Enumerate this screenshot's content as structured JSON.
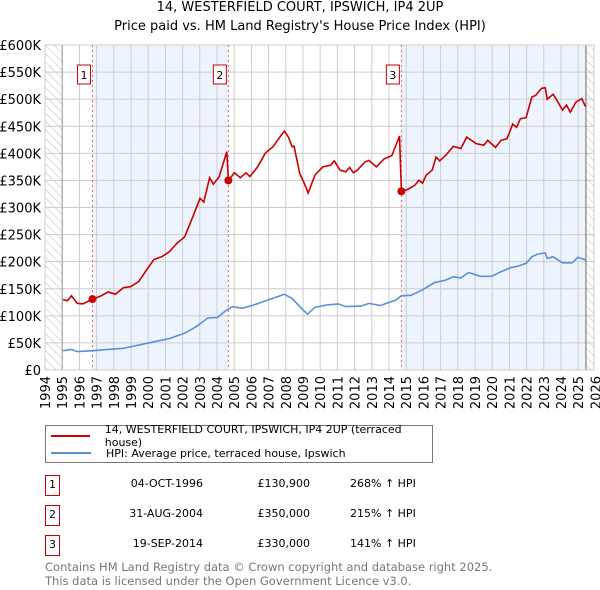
{
  "chart_data": {
    "type": "line",
    "title": "14, WESTERFIELD COURT, IPSWICH, IP4 2UP",
    "subtitle": "Price paid vs. HM Land Registry's House Price Index (HPI)",
    "xlim": [
      1994,
      2025.55
    ],
    "ylim": [
      0,
      600000
    ],
    "x_ticks": [
      "1994",
      "1995",
      "1996",
      "1997",
      "1998",
      "1999",
      "2000",
      "2001",
      "2002",
      "2003",
      "2004",
      "2005",
      "2006",
      "2007",
      "2008",
      "2009",
      "2010",
      "2011",
      "2012",
      "2013",
      "2014",
      "2015",
      "2016",
      "2017",
      "2018",
      "2019",
      "2020",
      "2021",
      "2022",
      "2023",
      "2024",
      "2025",
      "2026"
    ],
    "y_ticks": [
      {
        "value": 0,
        "label": "£0"
      },
      {
        "value": 50000,
        "label": "£50K"
      },
      {
        "value": 100000,
        "label": "£100K"
      },
      {
        "value": 150000,
        "label": "£150K"
      },
      {
        "value": 200000,
        "label": "£200K"
      },
      {
        "value": 250000,
        "label": "£250K"
      },
      {
        "value": 300000,
        "label": "£300K"
      },
      {
        "value": 350000,
        "label": "£350K"
      },
      {
        "value": 400000,
        "label": "£400K"
      },
      {
        "value": 450000,
        "label": "£450K"
      },
      {
        "value": 500000,
        "label": "£500K"
      },
      {
        "value": 550000,
        "label": "£550K"
      },
      {
        "value": 600000,
        "label": "£600K"
      }
    ],
    "grid": true,
    "data_end": 2025.45,
    "series": [
      {
        "name": "14, WESTERFIELD COURT, IPSWICH, IP4 2UP (terraced house)",
        "color": "#cc0000",
        "points": [
          [
            1995.04,
            130
          ],
          [
            1995.31,
            128
          ],
          [
            1995.54,
            137
          ],
          [
            1995.87,
            123
          ],
          [
            1996.2,
            122
          ],
          [
            1996.76,
            130.9
          ],
          [
            1997.21,
            136
          ],
          [
            1997.66,
            144
          ],
          [
            1998.1,
            140
          ],
          [
            1998.55,
            152
          ],
          [
            1998.99,
            154
          ],
          [
            1999.44,
            163
          ],
          [
            1999.89,
            184
          ],
          [
            2000.33,
            204
          ],
          [
            2000.78,
            209
          ],
          [
            2001.22,
            218
          ],
          [
            2001.67,
            234
          ],
          [
            2002.12,
            246
          ],
          [
            2002.56,
            280
          ],
          [
            2003.01,
            317
          ],
          [
            2003.23,
            310
          ],
          [
            2003.57,
            355
          ],
          [
            2003.79,
            343
          ],
          [
            2004.13,
            357
          ],
          [
            2004.57,
            403
          ],
          [
            2004.66,
            350
          ],
          [
            2005.02,
            364
          ],
          [
            2005.35,
            355
          ],
          [
            2005.69,
            364
          ],
          [
            2005.91,
            357
          ],
          [
            2006.36,
            375
          ],
          [
            2006.8,
            400
          ],
          [
            2007.25,
            412
          ],
          [
            2007.7,
            432
          ],
          [
            2007.92,
            441
          ],
          [
            2008.15,
            430
          ],
          [
            2008.37,
            412
          ],
          [
            2008.48,
            413
          ],
          [
            2008.81,
            363
          ],
          [
            2009.04,
            347
          ],
          [
            2009.3,
            327
          ],
          [
            2009.7,
            360
          ],
          [
            2010.15,
            375
          ],
          [
            2010.6,
            378
          ],
          [
            2010.82,
            386
          ],
          [
            2011.15,
            369
          ],
          [
            2011.49,
            366
          ],
          [
            2011.71,
            374
          ],
          [
            2011.93,
            364
          ],
          [
            2012.16,
            369
          ],
          [
            2012.6,
            384
          ],
          [
            2012.83,
            387
          ],
          [
            2013.27,
            375
          ],
          [
            2013.72,
            390
          ],
          [
            2014.17,
            396
          ],
          [
            2014.61,
            432
          ],
          [
            2014.72,
            330
          ],
          [
            2015.06,
            333
          ],
          [
            2015.5,
            341
          ],
          [
            2015.73,
            350
          ],
          [
            2015.95,
            345
          ],
          [
            2016.17,
            360
          ],
          [
            2016.51,
            369
          ],
          [
            2016.73,
            393
          ],
          [
            2016.95,
            386
          ],
          [
            2017.29,
            396
          ],
          [
            2017.74,
            413
          ],
          [
            2018.18,
            409
          ],
          [
            2018.52,
            430
          ],
          [
            2019.07,
            418
          ],
          [
            2019.52,
            415
          ],
          [
            2019.74,
            424
          ],
          [
            2020.19,
            411
          ],
          [
            2020.52,
            424
          ],
          [
            2020.86,
            427
          ],
          [
            2021.19,
            454
          ],
          [
            2021.42,
            448
          ],
          [
            2021.64,
            464
          ],
          [
            2021.97,
            466
          ],
          [
            2022.31,
            504
          ],
          [
            2022.53,
            507
          ],
          [
            2022.87,
            520
          ],
          [
            2023.09,
            521
          ],
          [
            2023.2,
            500
          ],
          [
            2023.54,
            509
          ],
          [
            2023.76,
            498
          ],
          [
            2024.09,
            480
          ],
          [
            2024.32,
            489
          ],
          [
            2024.54,
            476
          ],
          [
            2024.88,
            495
          ],
          [
            2025.21,
            501
          ],
          [
            2025.43,
            486
          ]
        ]
      },
      {
        "name": "HPI: Average price, terraced house, Ipswich",
        "color": "#5b8fd6",
        "points": [
          [
            1995.04,
            35.7
          ],
          [
            1995.54,
            38
          ],
          [
            1995.87,
            34
          ],
          [
            1996.76,
            35.7
          ],
          [
            1997.66,
            38
          ],
          [
            1998.55,
            40
          ],
          [
            1999.44,
            46
          ],
          [
            2000.33,
            52
          ],
          [
            2001.22,
            58
          ],
          [
            2002.12,
            68
          ],
          [
            2002.79,
            80
          ],
          [
            2003.46,
            96
          ],
          [
            2004.02,
            97
          ],
          [
            2004.57,
            111
          ],
          [
            2004.91,
            117
          ],
          [
            2005.46,
            114
          ],
          [
            2006.13,
            120
          ],
          [
            2007.03,
            130
          ],
          [
            2007.92,
            140
          ],
          [
            2008.37,
            132
          ],
          [
            2008.81,
            117
          ],
          [
            2009.26,
            103
          ],
          [
            2009.7,
            116
          ],
          [
            2010.37,
            120
          ],
          [
            2011.04,
            122
          ],
          [
            2011.49,
            117
          ],
          [
            2012.38,
            118
          ],
          [
            2012.83,
            123
          ],
          [
            2013.5,
            119
          ],
          [
            2013.95,
            124
          ],
          [
            2014.39,
            129
          ],
          [
            2014.72,
            137
          ],
          [
            2015.28,
            138
          ],
          [
            2015.95,
            148
          ],
          [
            2016.62,
            161
          ],
          [
            2017.29,
            166
          ],
          [
            2017.74,
            172
          ],
          [
            2018.18,
            170
          ],
          [
            2018.63,
            180
          ],
          [
            2019.3,
            173
          ],
          [
            2019.97,
            173
          ],
          [
            2020.41,
            180
          ],
          [
            2021.08,
            189
          ],
          [
            2021.53,
            192
          ],
          [
            2021.97,
            197
          ],
          [
            2022.31,
            209
          ],
          [
            2022.64,
            214
          ],
          [
            2023.09,
            216
          ],
          [
            2023.2,
            206
          ],
          [
            2023.54,
            209
          ],
          [
            2024.09,
            198
          ],
          [
            2024.65,
            198
          ],
          [
            2024.98,
            208
          ],
          [
            2025.43,
            203
          ]
        ]
      }
    ],
    "sales": [
      {
        "label": "1",
        "year": 1996.76,
        "value": 130.9
      },
      {
        "label": "2",
        "year": 2004.66,
        "value": 350
      },
      {
        "label": "3",
        "year": 2014.72,
        "value": 330
      }
    ],
    "value_units": "thousands GBP"
  },
  "legend": {
    "property": "14, WESTERFIELD COURT, IPSWICH, IP4 2UP (terraced house)",
    "hpi": "HPI: Average price, terraced house, Ipswich"
  },
  "transactions": [
    {
      "num": "1",
      "date": "04-OCT-1996",
      "price": "£130,900",
      "hpi": "268% ↑ HPI"
    },
    {
      "num": "2",
      "date": "31-AUG-2004",
      "price": "£350,000",
      "hpi": "215% ↑ HPI"
    },
    {
      "num": "3",
      "date": "19-SEP-2014",
      "price": "£330,000",
      "hpi": "141% ↑ HPI"
    }
  ],
  "footer": {
    "line1": "Contains HM Land Registry data © Crown copyright and database right 2025.",
    "line2": "This data is licensed under the Open Government Licence v3.0."
  }
}
